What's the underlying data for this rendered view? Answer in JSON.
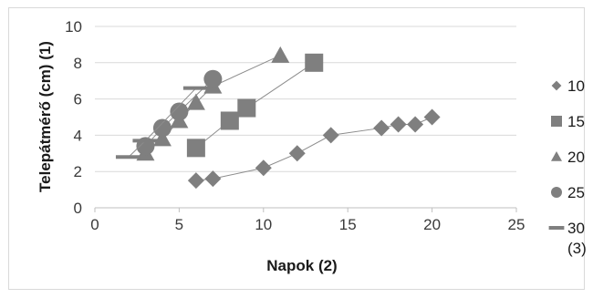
{
  "chart_data": {
    "type": "scatter",
    "xlabel": "Napok (2)",
    "ylabel": "Telepátmérő (cm) (1)",
    "xlim": [
      0,
      25
    ],
    "ylim": [
      0,
      10
    ],
    "x_ticks": [
      "0",
      "5",
      "10",
      "15",
      "20",
      "25"
    ],
    "y_ticks": [
      "0",
      "2",
      "4",
      "6",
      "8",
      "10"
    ],
    "grid": "horizontal",
    "legend_position": "right",
    "colors": {
      "marker": "#7f7f7f",
      "line": "#8c8c8c",
      "grid": "#d9d9d9",
      "axis": "#bfbfbf"
    },
    "series": [
      {
        "name": "10",
        "marker": "diamond",
        "points": [
          [
            6,
            1.5
          ],
          [
            7,
            1.6
          ],
          [
            10,
            2.2
          ],
          [
            12,
            3.0
          ],
          [
            14,
            4.0
          ],
          [
            17,
            4.4
          ],
          [
            18,
            4.6
          ],
          [
            19,
            4.6
          ],
          [
            20,
            5.0
          ]
        ]
      },
      {
        "name": "15",
        "marker": "square",
        "points": [
          [
            6,
            3.3
          ],
          [
            8,
            4.8
          ],
          [
            9,
            5.5
          ],
          [
            13,
            8.0
          ]
        ]
      },
      {
        "name": "20",
        "marker": "triangle",
        "points": [
          [
            3,
            3.0
          ],
          [
            4,
            3.8
          ],
          [
            5,
            4.8
          ],
          [
            6,
            5.8
          ],
          [
            7,
            6.7
          ],
          [
            11,
            8.4
          ]
        ]
      },
      {
        "name": "25",
        "marker": "circle",
        "points": [
          [
            3,
            3.4
          ],
          [
            4,
            4.4
          ],
          [
            5,
            5.3
          ],
          [
            7,
            7.1
          ]
        ]
      },
      {
        "name": "30",
        "legend_suffix": "(3)",
        "marker": "dash",
        "points": [
          [
            2,
            2.8
          ],
          [
            3,
            3.7
          ],
          [
            6,
            6.6
          ]
        ]
      }
    ]
  }
}
